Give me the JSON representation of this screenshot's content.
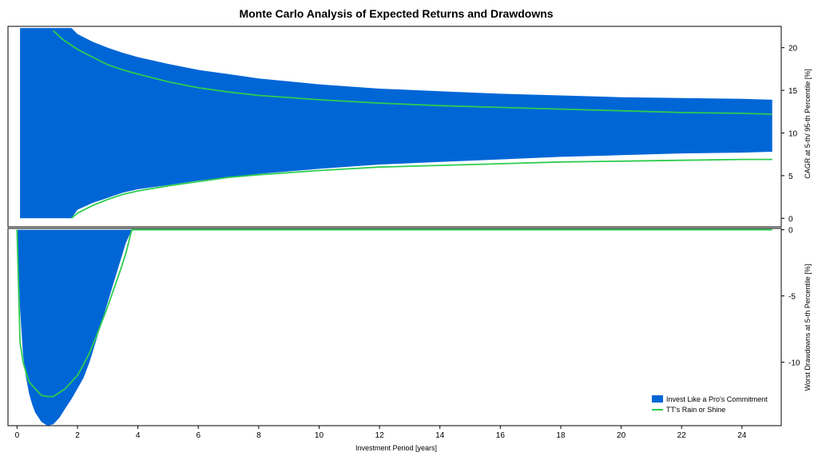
{
  "chart_data": {
    "type": "area",
    "title": "Monte Carlo Analysis of Expected Returns and Drawdowns",
    "xlabel": "Investment Period [years]",
    "xlim": [
      -0.3,
      25.3
    ],
    "xticks": [
      0,
      2,
      4,
      6,
      8,
      10,
      12,
      14,
      16,
      18,
      20,
      22,
      24
    ],
    "legend": {
      "position": "bottom-right",
      "entries": [
        "Invest Like a Pro's Commitment",
        "TT's Rain or Shine"
      ]
    },
    "colors": {
      "band": "#0066D6",
      "line": "#2ECC50"
    },
    "panels": [
      {
        "name": "cagr",
        "ylabel": "CAGR at 5-th/ 95-th Percentile [%]",
        "ylim": [
          -1,
          22.5
        ],
        "yticks": [
          0,
          5,
          10,
          15,
          20
        ],
        "series": [
          {
            "name": "Invest Like a Pro's Commitment",
            "kind": "band",
            "x": [
              0.1,
              1.0,
              1.8,
              2.0,
              2.5,
              3.0,
              3.5,
              4.0,
              5.0,
              6.0,
              7.0,
              8.0,
              10.0,
              12.0,
              14.0,
              16.0,
              18.0,
              20.0,
              22.0,
              24.0,
              25.0
            ],
            "lower": [
              0,
              0,
              0,
              1.0,
              1.8,
              2.4,
              3.0,
              3.4,
              3.9,
              4.4,
              4.8,
              5.2,
              5.8,
              6.3,
              6.6,
              6.9,
              7.2,
              7.4,
              7.6,
              7.7,
              7.8
            ],
            "upper": [
              22.3,
              22.3,
              22.3,
              21.6,
              20.7,
              20.0,
              19.4,
              18.9,
              18.1,
              17.4,
              16.9,
              16.4,
              15.7,
              15.2,
              14.9,
              14.6,
              14.4,
              14.2,
              14.1,
              14.0,
              13.9
            ]
          },
          {
            "name": "TT's Rain or Shine",
            "kind": "line",
            "role": "upper",
            "x": [
              1.2,
              1.5,
              2.0,
              2.5,
              3.0,
              3.5,
              4.0,
              5.0,
              6.0,
              7.0,
              8.0,
              10.0,
              12.0,
              14.0,
              16.0,
              18.0,
              20.0,
              22.0,
              24.0,
              25.0
            ],
            "y": [
              22.0,
              21.0,
              19.8,
              18.9,
              18.0,
              17.4,
              16.9,
              16.0,
              15.3,
              14.8,
              14.4,
              13.9,
              13.5,
              13.2,
              13.0,
              12.8,
              12.6,
              12.4,
              12.3,
              12.2
            ]
          },
          {
            "name": "TT's Rain or Shine",
            "kind": "line",
            "role": "lower",
            "x": [
              1.8,
              2.0,
              2.5,
              3.0,
              3.5,
              4.0,
              5.0,
              6.0,
              7.0,
              8.0,
              10.0,
              12.0,
              14.0,
              16.0,
              18.0,
              20.0,
              22.0,
              24.0,
              25.0
            ],
            "y": [
              0,
              0.6,
              1.5,
              2.2,
              2.8,
              3.2,
              3.8,
              4.3,
              4.8,
              5.1,
              5.6,
              6.0,
              6.2,
              6.4,
              6.6,
              6.7,
              6.8,
              6.9,
              6.9
            ]
          }
        ]
      },
      {
        "name": "drawdown",
        "ylabel": "Worst Drawdowns at 5-th Percentile [%]",
        "ylim": [
          -14.8,
          0.1
        ],
        "yticks": [
          0,
          -5,
          -10
        ],
        "series": [
          {
            "name": "Invest Like a Pro's Commitment",
            "kind": "area",
            "x": [
              0,
              0.1,
              0.2,
              0.3,
              0.4,
              0.5,
              0.6,
              0.8,
              1.0,
              1.2,
              1.4,
              1.6,
              1.8,
              2.0,
              2.2,
              2.4,
              2.6,
              2.8,
              3.0,
              3.2,
              3.4,
              3.6,
              3.8,
              25.0
            ],
            "y": [
              -0.2,
              -6.0,
              -9.5,
              -11.2,
              -12.4,
              -13.2,
              -13.8,
              -14.5,
              -14.8,
              -14.7,
              -14.2,
              -13.5,
              -12.8,
              -12.0,
              -11.2,
              -10.0,
              -8.5,
              -7.0,
              -5.5,
              -4.0,
              -2.5,
              -1.0,
              0,
              0
            ]
          },
          {
            "name": "TT's Rain or Shine",
            "kind": "line",
            "x": [
              0,
              0.1,
              0.2,
              0.3,
              0.4,
              0.6,
              0.8,
              1.0,
              1.2,
              1.4,
              1.6,
              1.8,
              2.0,
              2.2,
              2.4,
              2.6,
              2.8,
              3.0,
              3.2,
              3.4,
              3.6,
              3.8,
              25.0
            ],
            "y": [
              0,
              -8.5,
              -10.0,
              -10.8,
              -11.5,
              -12.0,
              -12.5,
              -12.6,
              -12.6,
              -12.3,
              -12.0,
              -11.5,
              -11.0,
              -10.2,
              -9.3,
              -8.2,
              -7.0,
              -5.8,
              -4.5,
              -3.2,
              -1.8,
              0,
              0
            ]
          }
        ]
      }
    ]
  }
}
